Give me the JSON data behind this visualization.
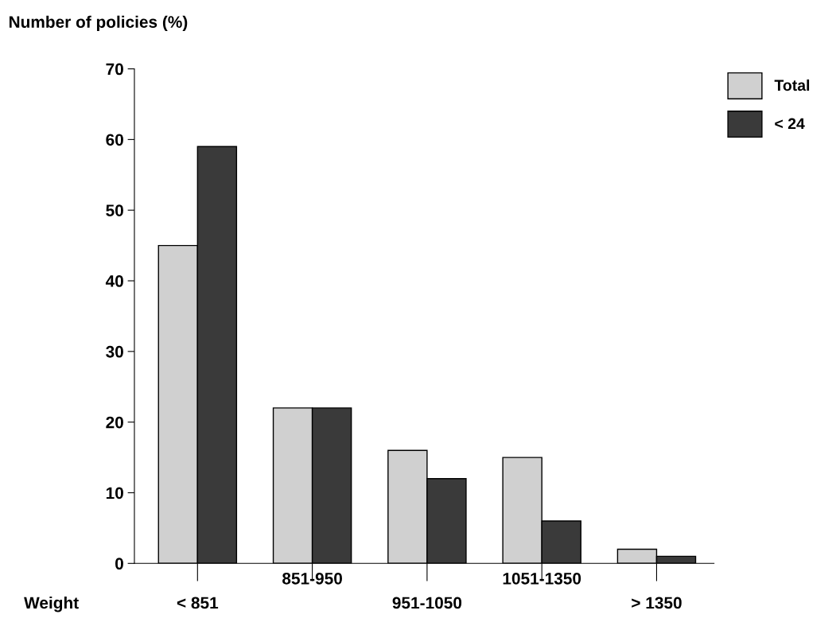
{
  "chart_data": {
    "type": "bar",
    "ylabel": "Number of policies (%)",
    "xlabel": "Weight",
    "categories": [
      "< 851",
      "851-950",
      "951-1050",
      "1051-1350",
      "> 1350"
    ],
    "series": [
      {
        "name": "Total",
        "color": "#d0d0d0",
        "values": [
          45,
          22,
          16,
          15,
          2
        ]
      },
      {
        "name": "< 24",
        "color": "#3a3a3a",
        "values": [
          59,
          22,
          12,
          6,
          1
        ]
      }
    ],
    "ylim": [
      0,
      70
    ],
    "yticks": [
      0,
      10,
      20,
      30,
      40,
      50,
      60,
      70
    ],
    "grid": false,
    "legend": "top right"
  }
}
